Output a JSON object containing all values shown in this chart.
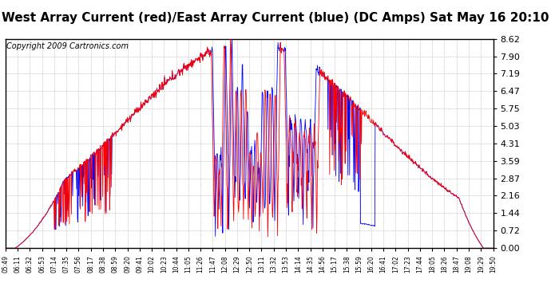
{
  "title": "West Array Current (red)/East Array Current (blue) (DC Amps) Sat May 16 20:10",
  "copyright": "Copyright 2009 Cartronics.com",
  "yticks": [
    0.0,
    0.72,
    1.44,
    2.16,
    2.87,
    3.59,
    4.31,
    5.03,
    5.75,
    6.47,
    7.19,
    7.9,
    8.62
  ],
  "ymin": 0.0,
  "ymax": 8.62,
  "xtick_labels": [
    "05:49",
    "06:11",
    "06:32",
    "06:53",
    "07:14",
    "07:35",
    "07:56",
    "08:17",
    "08:38",
    "08:59",
    "09:20",
    "09:41",
    "10:02",
    "10:23",
    "10:44",
    "11:05",
    "11:26",
    "11:47",
    "12:08",
    "12:29",
    "12:50",
    "13:11",
    "13:32",
    "13:53",
    "14:14",
    "14:35",
    "14:56",
    "15:17",
    "15:38",
    "15:59",
    "16:20",
    "16:41",
    "17:02",
    "17:23",
    "17:44",
    "18:05",
    "18:26",
    "18:47",
    "19:08",
    "19:29",
    "19:50"
  ],
  "bg_color": "#ffffff",
  "grid_color": "#bbbbbb",
  "red_color": "#ff0000",
  "blue_color": "#0000ff",
  "title_fontsize": 11,
  "copyright_fontsize": 7,
  "n_points": 1200
}
